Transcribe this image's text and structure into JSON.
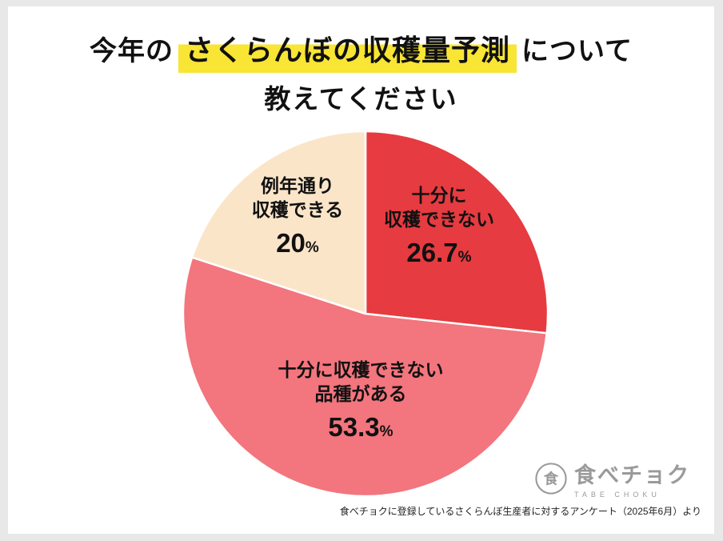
{
  "header": {
    "title_prefix": "今年の",
    "title_highlight": "さくらんぼの収穫量予測",
    "title_suffix": "について",
    "title_line2": "教えてください",
    "highlight_color": "#f8e534"
  },
  "chart_data": {
    "type": "pie",
    "title": "今年のさくらんぼの収穫量予測について教えてください",
    "unit": "%",
    "start_angle": "top",
    "direction": "clockwise",
    "legend_position": "none",
    "slices": [
      {
        "name": "cannot-harvest-enough",
        "label_line1": "十分に",
        "label_line2": "収穫できない",
        "value": 26.7,
        "value_text": "26.7",
        "color": "#e63b40"
      },
      {
        "name": "some-varieties-cannot",
        "label_line1": "十分に収穫できない",
        "label_line2": "品種がある",
        "value": 53.3,
        "value_text": "53.3",
        "color": "#f3757d"
      },
      {
        "name": "normal-harvest",
        "label_line1": "例年通り",
        "label_line2": "収穫できる",
        "value": 20,
        "value_text": "20",
        "color": "#fbe5c9"
      }
    ]
  },
  "logo": {
    "brand": "食べチョク",
    "brand_sub": "TABE CHOKU",
    "emblem_char": "食",
    "color": "#9a9a9a"
  },
  "footer": {
    "note": "食べチョクに登録しているさくらんぼ生産者に対するアンケート（2025年6月）より"
  }
}
